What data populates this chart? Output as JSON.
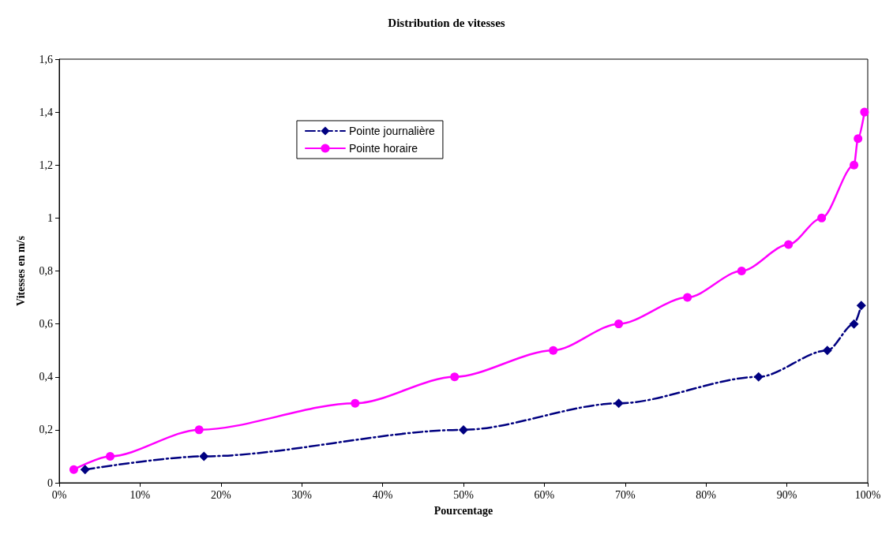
{
  "chart_data": {
    "type": "line",
    "title": "Distribution de vitesses",
    "xlabel": "Pourcentage",
    "ylabel": "Vitesses en m/s",
    "xlim": [
      0,
      100
    ],
    "xticks": [
      {
        "value": 0,
        "label": "0%"
      },
      {
        "value": 10,
        "label": "10%"
      },
      {
        "value": 20,
        "label": "20%"
      },
      {
        "value": 30,
        "label": "30%"
      },
      {
        "value": 40,
        "label": "40%"
      },
      {
        "value": 50,
        "label": "50%"
      },
      {
        "value": 60,
        "label": "60%"
      },
      {
        "value": 70,
        "label": "70%"
      },
      {
        "value": 80,
        "label": "80%"
      },
      {
        "value": 90,
        "label": "90%"
      },
      {
        "value": 100,
        "label": "100%"
      }
    ],
    "ylim": [
      0,
      1.6
    ],
    "yticks": [
      0,
      {
        "value": 0.2,
        "label": "0,2"
      },
      {
        "value": 0.4,
        "label": "0,4"
      },
      {
        "value": 0.6,
        "label": "0,6"
      },
      {
        "value": 0.8,
        "label": "0,8"
      },
      1,
      {
        "value": 1.2,
        "label": "1,2"
      },
      {
        "value": 1.4,
        "label": "1,4"
      },
      {
        "value": 1.6,
        "label": "1,6"
      }
    ],
    "grid": false,
    "legend": "top",
    "series": [
      {
        "name": "Pointe journalière",
        "color": "#000080",
        "marker": "diamond",
        "line_style": "dashdot",
        "x": [
          3.2,
          17.9,
          50,
          69.2,
          86.5,
          95,
          98.3,
          99.2
        ],
        "values": [
          0.05,
          0.1,
          0.2,
          0.3,
          0.4,
          0.5,
          0.6,
          0.67
        ]
      },
      {
        "name": "Pointe horaire",
        "color": "#ff00ff",
        "marker": "circle",
        "line_style": "solid",
        "x": [
          1.8,
          6.3,
          17.3,
          36.6,
          48.9,
          61.1,
          69.2,
          77.7,
          84.4,
          90.2,
          94.3,
          98.3,
          98.8,
          99.6
        ],
        "values": [
          0.05,
          0.1,
          0.2,
          0.3,
          0.4,
          0.5,
          0.6,
          0.7,
          0.8,
          0.9,
          1.0,
          1.2,
          1.3,
          1.4
        ]
      }
    ]
  }
}
